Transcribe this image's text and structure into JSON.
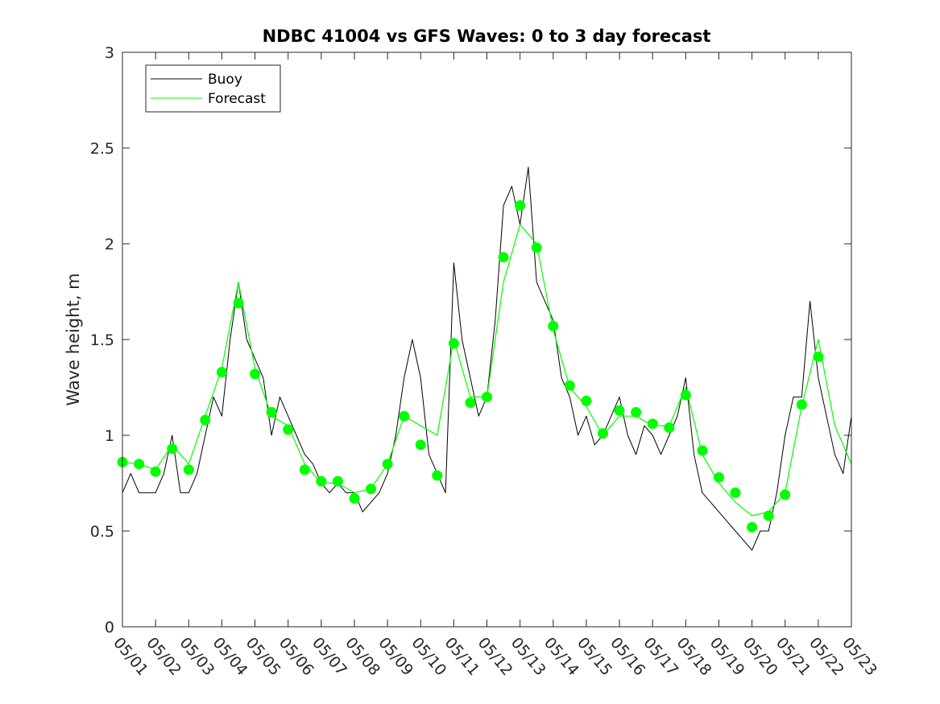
{
  "chart_data": {
    "type": "line",
    "title": "NDBC 41004 vs GFS Waves: 0 to 3 day forecast",
    "xlabel": "",
    "ylabel": "Wave height, m",
    "xlim": [
      "05/01",
      "05/23"
    ],
    "ylim": [
      0,
      3
    ],
    "x_ticks": [
      "05/01",
      "05/02",
      "05/03",
      "05/04",
      "05/05",
      "05/06",
      "05/07",
      "05/08",
      "05/09",
      "05/10",
      "05/11",
      "05/12",
      "05/13",
      "05/14",
      "05/15",
      "05/16",
      "05/17",
      "05/18",
      "05/19",
      "05/20",
      "05/21",
      "05/22",
      "05/23"
    ],
    "y_ticks": [
      "0",
      "0.5",
      "1",
      "1.5",
      "2",
      "2.5",
      "3"
    ],
    "grid": false,
    "legend_position": "top-left",
    "colors": {
      "buoy": "#000000",
      "forecast": "#00ff00",
      "axis": "#262626"
    },
    "series": [
      {
        "name": "Buoy",
        "x": [
          "05/01 00:00",
          "05/01 06:00",
          "05/01 12:00",
          "05/01 18:00",
          "05/02 00:00",
          "05/02 06:00",
          "05/02 12:00",
          "05/02 18:00",
          "05/03 00:00",
          "05/03 06:00",
          "05/03 12:00",
          "05/03 18:00",
          "05/04 00:00",
          "05/04 06:00",
          "05/04 12:00",
          "05/04 18:00",
          "05/05 00:00",
          "05/05 06:00",
          "05/05 12:00",
          "05/05 18:00",
          "05/06 00:00",
          "05/06 06:00",
          "05/06 12:00",
          "05/06 18:00",
          "05/07 00:00",
          "05/07 06:00",
          "05/07 12:00",
          "05/07 18:00",
          "05/08 00:00",
          "05/08 06:00",
          "05/08 12:00",
          "05/08 18:00",
          "05/09 00:00",
          "05/09 06:00",
          "05/09 12:00",
          "05/09 18:00",
          "05/10 00:00",
          "05/10 06:00",
          "05/10 12:00",
          "05/10 18:00",
          "05/11 00:00",
          "05/11 06:00",
          "05/11 12:00",
          "05/11 18:00",
          "05/12 00:00",
          "05/12 06:00",
          "05/12 12:00",
          "05/12 18:00",
          "05/13 00:00",
          "05/13 06:00",
          "05/13 12:00",
          "05/13 18:00",
          "05/14 00:00",
          "05/14 06:00",
          "05/14 12:00",
          "05/14 18:00",
          "05/15 00:00",
          "05/15 06:00",
          "05/15 12:00",
          "05/15 18:00",
          "05/16 00:00",
          "05/16 06:00",
          "05/16 12:00",
          "05/16 18:00",
          "05/17 00:00",
          "05/17 06:00",
          "05/17 12:00",
          "05/17 18:00",
          "05/18 00:00",
          "05/18 06:00",
          "05/18 12:00",
          "05/18 18:00",
          "05/19 00:00",
          "05/19 06:00",
          "05/19 12:00",
          "05/19 18:00",
          "05/20 00:00",
          "05/20 06:00",
          "05/20 12:00",
          "05/20 18:00",
          "05/21 00:00",
          "05/21 06:00",
          "05/21 12:00",
          "05/21 18:00",
          "05/22 00:00",
          "05/22 06:00",
          "05/22 12:00",
          "05/22 18:00",
          "05/23 00:00"
        ],
        "values": [
          0.7,
          0.8,
          0.7,
          0.7,
          0.7,
          0.8,
          1.0,
          0.7,
          0.7,
          0.8,
          1.0,
          1.2,
          1.1,
          1.5,
          1.8,
          1.5,
          1.4,
          1.3,
          1.0,
          1.2,
          1.1,
          1.0,
          0.9,
          0.85,
          0.75,
          0.7,
          0.75,
          0.7,
          0.7,
          0.6,
          0.65,
          0.7,
          0.8,
          1.0,
          1.3,
          1.5,
          1.3,
          0.9,
          0.8,
          0.7,
          1.9,
          1.5,
          1.3,
          1.1,
          1.2,
          1.6,
          2.2,
          2.3,
          2.1,
          2.4,
          1.8,
          1.7,
          1.6,
          1.3,
          1.2,
          1.0,
          1.1,
          0.95,
          1.0,
          1.1,
          1.2,
          1.0,
          0.9,
          1.05,
          1.0,
          0.9,
          1.0,
          1.1,
          1.3,
          0.9,
          0.7,
          0.65,
          0.6,
          0.55,
          0.5,
          0.45,
          0.4,
          0.5,
          0.5,
          0.7,
          1.0,
          1.2,
          1.2,
          1.7,
          1.3,
          1.1,
          0.9,
          0.8,
          1.1
        ]
      },
      {
        "name": "Forecast",
        "x": [
          "05/01 00:00",
          "05/01 12:00",
          "05/02 00:00",
          "05/02 12:00",
          "05/03 00:00",
          "05/03 12:00",
          "05/04 00:00",
          "05/04 12:00",
          "05/05 00:00",
          "05/05 12:00",
          "05/06 00:00",
          "05/06 12:00",
          "05/07 00:00",
          "05/07 12:00",
          "05/08 00:00",
          "05/08 12:00",
          "05/09 00:00",
          "05/09 12:00",
          "05/10 00:00",
          "05/10 12:00",
          "05/11 00:00",
          "05/11 12:00",
          "05/12 00:00",
          "05/12 12:00",
          "05/13 00:00",
          "05/13 12:00",
          "05/14 00:00",
          "05/14 12:00",
          "05/15 00:00",
          "05/15 12:00",
          "05/16 00:00",
          "05/16 12:00",
          "05/17 00:00",
          "05/17 12:00",
          "05/18 00:00",
          "05/18 12:00",
          "05/19 00:00",
          "05/19 12:00",
          "05/20 00:00",
          "05/20 12:00",
          "05/21 00:00",
          "05/21 12:00",
          "05/22 00:00",
          "05/22 12:00",
          "05/23 00:00"
        ],
        "values": [
          0.86,
          0.85,
          0.82,
          0.95,
          0.85,
          1.1,
          1.35,
          1.8,
          1.35,
          1.1,
          1.05,
          0.85,
          0.75,
          0.75,
          0.7,
          0.72,
          0.85,
          1.1,
          1.05,
          1.0,
          1.5,
          1.2,
          1.2,
          1.8,
          2.1,
          2.0,
          1.55,
          1.25,
          1.15,
          1.0,
          1.1,
          1.1,
          1.05,
          1.05,
          1.25,
          0.9,
          0.75,
          0.65,
          0.58,
          0.6,
          0.7,
          1.15,
          1.5,
          1.05,
          0.85
        ]
      }
    ],
    "analysis_points": {
      "x": [
        "05/01 00:00",
        "05/01 12:00",
        "05/02 00:00",
        "05/02 12:00",
        "05/03 00:00",
        "05/03 12:00",
        "05/04 00:00",
        "05/04 12:00",
        "05/05 00:00",
        "05/05 12:00",
        "05/06 00:00",
        "05/06 12:00",
        "05/07 00:00",
        "05/07 12:00",
        "05/08 00:00",
        "05/08 12:00",
        "05/09 00:00",
        "05/09 12:00",
        "05/10 00:00",
        "05/10 12:00",
        "05/11 00:00",
        "05/11 12:00",
        "05/12 00:00",
        "05/12 12:00",
        "05/13 00:00",
        "05/13 12:00",
        "05/14 00:00",
        "05/14 12:00",
        "05/15 00:00",
        "05/15 12:00",
        "05/16 00:00",
        "05/16 12:00",
        "05/17 00:00",
        "05/17 12:00",
        "05/18 00:00",
        "05/18 12:00",
        "05/19 00:00",
        "05/19 12:00",
        "05/20 00:00",
        "05/20 12:00",
        "05/21 00:00",
        "05/21 12:00",
        "05/22 00:00"
      ],
      "values": [
        0.86,
        0.85,
        0.81,
        0.93,
        0.82,
        1.08,
        1.33,
        1.69,
        1.32,
        1.12,
        1.03,
        0.82,
        0.76,
        0.76,
        0.67,
        0.72,
        0.85,
        1.1,
        0.95,
        0.79,
        1.48,
        1.17,
        1.2,
        1.93,
        2.2,
        1.98,
        1.57,
        1.26,
        1.18,
        1.01,
        1.13,
        1.12,
        1.06,
        1.04,
        1.21,
        0.92,
        0.78,
        0.7,
        0.52,
        0.58,
        0.69,
        1.16,
        1.41
      ]
    }
  }
}
